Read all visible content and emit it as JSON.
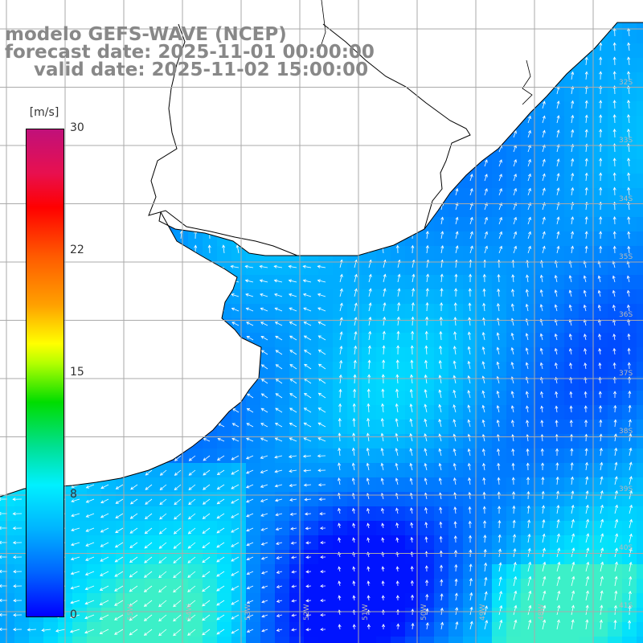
{
  "title": {
    "line1": "modelo GEFS-WAVE (NCEP)",
    "line2": "forecast date: 2025-11-01 00:00:00",
    "line3": "valid date: 2025-11-02 15:00:00"
  },
  "colorbar": {
    "unit": "[m/s]",
    "ticks": [
      "30",
      "22",
      "15",
      "8",
      "0"
    ],
    "min": 0,
    "max": 30
  },
  "colors": {
    "land": "#ffffff",
    "grid": "#aaaaaa",
    "coast": "#000000",
    "arrow": "#ffffff",
    "title": "#888888"
  },
  "grid": {
    "lat_labels": [
      "32S",
      "33S",
      "34S",
      "35S",
      "36S",
      "37S",
      "38S",
      "39S",
      "40S",
      "41S"
    ],
    "lon_labels": [
      "55W",
      "54W",
      "53W",
      "52W",
      "51W",
      "50W",
      "49W",
      "48W"
    ]
  },
  "field": {
    "variable": "wind speed",
    "units": "m/s",
    "dominant_direction": "from south",
    "region": "southern Brazil / Uruguay / Rio de la Plata coast"
  }
}
